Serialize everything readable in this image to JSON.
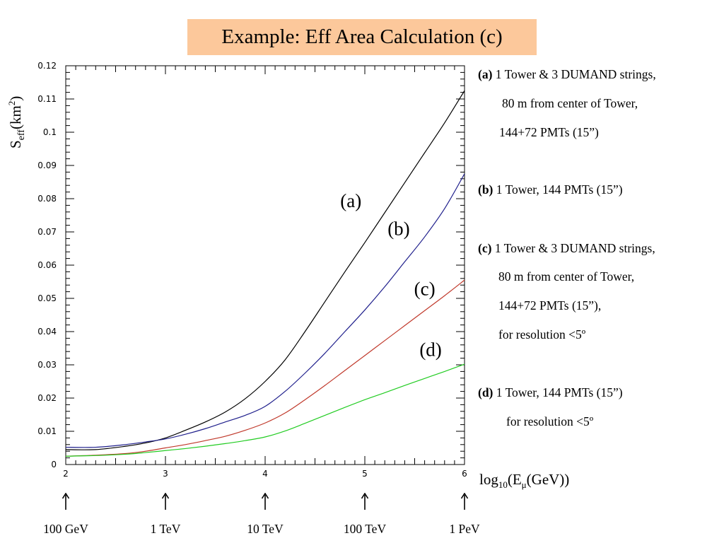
{
  "title": "Example: Eff Area Calculation (c)",
  "legend": {
    "a": {
      "tag": "(a)",
      "lines": [
        "1 Tower & 3 DUMAND strings,",
        "80 m from center of Tower,",
        "144+72 PMTs (15”)"
      ]
    },
    "b": {
      "tag": "(b)",
      "lines": [
        "1 Tower, 144 PMTs (15”)"
      ]
    },
    "c": {
      "tag": "(c)",
      "lines": [
        "1 Tower & 3 DUMAND strings,",
        "80 m from center of Tower,",
        "144+72 PMTs (15”),",
        "for resolution <5º"
      ]
    },
    "d": {
      "tag": "(d)",
      "lines": [
        "1 Tower, 144 PMTs (15”)",
        "for resolution <5º"
      ]
    }
  },
  "energy_markers": [
    {
      "x": 2,
      "label": "100 GeV"
    },
    {
      "x": 3,
      "label": "1 TeV"
    },
    {
      "x": 4,
      "label": "10 TeV"
    },
    {
      "x": 5,
      "label": "100 TeV"
    },
    {
      "x": 6,
      "label": "1 PeV"
    }
  ],
  "chart_data": {
    "type": "line",
    "ylabel": {
      "main": "S",
      "sub": "eff",
      "rest": "(km",
      "sup": "2",
      "end": ")"
    },
    "xlabel": {
      "main": "log",
      "sub1": "10",
      "mid": "(E",
      "sub2": "μ",
      "end": "(GeV))"
    },
    "xlim": [
      2,
      6
    ],
    "ylim": [
      0,
      0.12
    ],
    "xticks": [
      2,
      3,
      4,
      5,
      6
    ],
    "yticks": [
      0,
      0.01,
      0.02,
      0.03,
      0.04,
      0.05,
      0.06,
      0.07,
      0.08,
      0.09,
      0.1,
      0.11,
      0.12
    ],
    "ytick_labels": [
      "0",
      "0.01",
      "0.02",
      "0.03",
      "0.04",
      "0.05",
      "0.06",
      "0.07",
      "0.08",
      "0.09",
      "0.1",
      "0.11",
      "0.12"
    ],
    "grid": false,
    "series": [
      {
        "name": "(a)",
        "color": "#000000",
        "x": [
          2,
          2.3,
          2.6,
          2.8,
          3,
          3.2,
          3.4,
          3.6,
          3.8,
          4,
          4.2,
          4.4,
          4.6,
          4.8,
          5,
          5.2,
          5.4,
          5.6,
          5.8,
          6
        ],
        "y": [
          0.0045,
          0.0045,
          0.0055,
          0.0065,
          0.008,
          0.0103,
          0.0128,
          0.0158,
          0.0198,
          0.025,
          0.0315,
          0.04,
          0.049,
          0.058,
          0.0668,
          0.0758,
          0.0848,
          0.0938,
          0.1028,
          0.1125
        ]
      },
      {
        "name": "(b)",
        "color": "#1f1f8c",
        "x": [
          2,
          2.3,
          2.6,
          2.8,
          3,
          3.2,
          3.4,
          3.6,
          3.8,
          4,
          4.2,
          4.4,
          4.6,
          4.8,
          5,
          5.2,
          5.4,
          5.6,
          5.8,
          6
        ],
        "y": [
          0.0052,
          0.0052,
          0.006,
          0.0068,
          0.0077,
          0.0091,
          0.0108,
          0.0128,
          0.0148,
          0.0175,
          0.022,
          0.0275,
          0.0335,
          0.04,
          0.0465,
          0.0535,
          0.061,
          0.0685,
          0.077,
          0.0875
        ]
      },
      {
        "name": "(c)",
        "color": "#c0392b",
        "x": [
          2,
          2.3,
          2.6,
          2.8,
          3,
          3.2,
          3.4,
          3.6,
          3.8,
          4,
          4.2,
          4.4,
          4.6,
          4.8,
          5,
          5.2,
          5.4,
          5.6,
          5.8,
          6
        ],
        "y": [
          0.0025,
          0.0028,
          0.0033,
          0.004,
          0.005,
          0.006,
          0.0072,
          0.0085,
          0.0103,
          0.0125,
          0.0155,
          0.0195,
          0.0238,
          0.0283,
          0.0328,
          0.0373,
          0.0418,
          0.0463,
          0.0508,
          0.0555
        ]
      },
      {
        "name": "(d)",
        "color": "#22cc22",
        "x": [
          2,
          2.3,
          2.6,
          2.8,
          3,
          3.2,
          3.4,
          3.6,
          3.8,
          4,
          4.2,
          4.4,
          4.6,
          4.8,
          5,
          5.2,
          5.4,
          5.6,
          5.8,
          6
        ],
        "y": [
          0.0025,
          0.0027,
          0.0031,
          0.0036,
          0.0042,
          0.0048,
          0.0055,
          0.0063,
          0.0072,
          0.0083,
          0.0101,
          0.0124,
          0.0148,
          0.0172,
          0.0195,
          0.0216,
          0.0238,
          0.0259,
          0.028,
          0.0302
        ]
      }
    ],
    "curve_labels": [
      {
        "series": "(a)",
        "text": "(a)",
        "x": 4.86,
        "y": 0.0775
      },
      {
        "series": "(b)",
        "text": "(b)",
        "x": 5.34,
        "y": 0.069
      },
      {
        "series": "(c)",
        "text": "(c)",
        "x": 5.6,
        "y": 0.051
      },
      {
        "series": "(d)",
        "text": "(d)",
        "x": 5.66,
        "y": 0.0327
      }
    ]
  }
}
